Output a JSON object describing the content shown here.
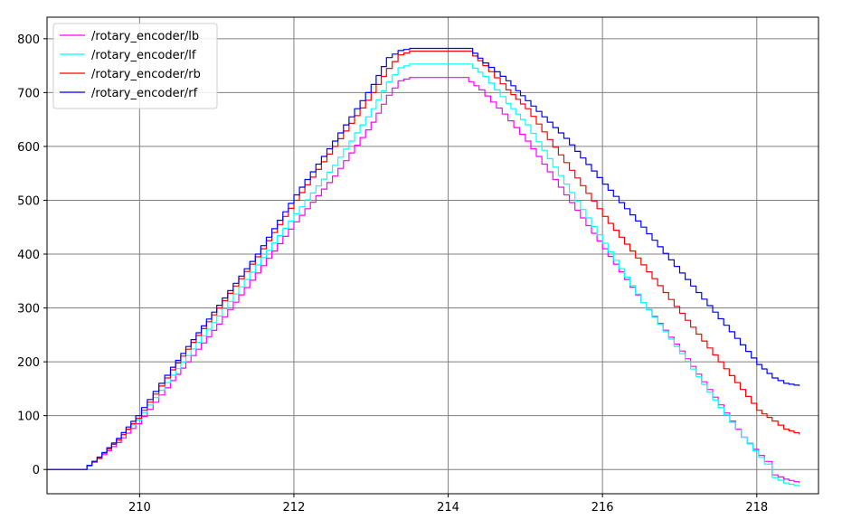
{
  "chart_data": {
    "type": "line",
    "title": "",
    "xlabel": "",
    "ylabel": "",
    "xlim": [
      208.8,
      218.8
    ],
    "ylim": [
      -45,
      840
    ],
    "grid": true,
    "legend_position": "top-left",
    "x_ticks": [
      210,
      212,
      214,
      216,
      218
    ],
    "y_ticks": [
      0,
      100,
      200,
      300,
      400,
      500,
      600,
      700,
      800
    ],
    "series": [
      {
        "name": "/rotary_encoder/lb",
        "color": "#ff00ff",
        "points": [
          [
            208.8,
            0
          ],
          [
            209.25,
            0
          ],
          [
            209.45,
            20
          ],
          [
            209.7,
            50
          ],
          [
            209.95,
            85
          ],
          [
            210.4,
            165
          ],
          [
            211.0,
            270
          ],
          [
            211.5,
            365
          ],
          [
            212.0,
            460
          ],
          [
            212.5,
            545
          ],
          [
            213.0,
            645
          ],
          [
            213.2,
            695
          ],
          [
            213.35,
            722
          ],
          [
            213.5,
            728
          ],
          [
            214.2,
            728
          ],
          [
            214.4,
            705
          ],
          [
            214.7,
            660
          ],
          [
            215.0,
            610
          ],
          [
            215.5,
            510
          ],
          [
            216.0,
            410
          ],
          [
            216.5,
            310
          ],
          [
            217.0,
            220
          ],
          [
            217.5,
            120
          ],
          [
            217.8,
            60
          ],
          [
            218.1,
            15
          ],
          [
            218.2,
            -10
          ],
          [
            218.35,
            -18
          ],
          [
            218.55,
            -25
          ]
        ]
      },
      {
        "name": "/rotary_encoder/lf",
        "color": "#00ffff",
        "points": [
          [
            208.8,
            0
          ],
          [
            209.25,
            0
          ],
          [
            209.45,
            22
          ],
          [
            209.7,
            55
          ],
          [
            209.95,
            92
          ],
          [
            210.4,
            175
          ],
          [
            211.0,
            285
          ],
          [
            211.5,
            380
          ],
          [
            212.0,
            475
          ],
          [
            212.5,
            565
          ],
          [
            213.0,
            670
          ],
          [
            213.2,
            720
          ],
          [
            213.35,
            746
          ],
          [
            213.5,
            753
          ],
          [
            214.25,
            753
          ],
          [
            214.45,
            730
          ],
          [
            214.75,
            680
          ],
          [
            215.0,
            640
          ],
          [
            215.5,
            530
          ],
          [
            216.0,
            420
          ],
          [
            216.5,
            310
          ],
          [
            217.0,
            215
          ],
          [
            217.5,
            115
          ],
          [
            217.8,
            60
          ],
          [
            218.1,
            10
          ],
          [
            218.2,
            -15
          ],
          [
            218.35,
            -25
          ],
          [
            218.55,
            -32
          ]
        ]
      },
      {
        "name": "/rotary_encoder/rb",
        "color": "#ff0000",
        "points": [
          [
            208.8,
            0
          ],
          [
            209.25,
            0
          ],
          [
            209.45,
            22
          ],
          [
            209.7,
            55
          ],
          [
            209.95,
            95
          ],
          [
            210.4,
            185
          ],
          [
            211.0,
            300
          ],
          [
            211.5,
            395
          ],
          [
            212.0,
            500
          ],
          [
            212.5,
            600
          ],
          [
            213.0,
            700
          ],
          [
            213.2,
            745
          ],
          [
            213.35,
            770
          ],
          [
            213.5,
            777
          ],
          [
            214.25,
            777
          ],
          [
            214.45,
            750
          ],
          [
            214.75,
            705
          ],
          [
            215.0,
            670
          ],
          [
            215.5,
            570
          ],
          [
            216.0,
            470
          ],
          [
            216.5,
            380
          ],
          [
            217.0,
            290
          ],
          [
            217.5,
            200
          ],
          [
            218.0,
            110
          ],
          [
            218.2,
            90
          ],
          [
            218.35,
            75
          ],
          [
            218.55,
            65
          ]
        ]
      },
      {
        "name": "/rotary_encoder/rf",
        "color": "#0000ff",
        "points": [
          [
            208.8,
            0
          ],
          [
            209.25,
            0
          ],
          [
            209.45,
            23
          ],
          [
            209.7,
            58
          ],
          [
            209.95,
            100
          ],
          [
            210.4,
            190
          ],
          [
            211.0,
            305
          ],
          [
            211.5,
            400
          ],
          [
            212.0,
            510
          ],
          [
            212.5,
            610
          ],
          [
            213.0,
            715
          ],
          [
            213.2,
            765
          ],
          [
            213.35,
            778
          ],
          [
            213.5,
            782
          ],
          [
            214.25,
            782
          ],
          [
            214.45,
            755
          ],
          [
            214.75,
            722
          ],
          [
            215.0,
            685
          ],
          [
            215.5,
            615
          ],
          [
            216.0,
            530
          ],
          [
            216.5,
            450
          ],
          [
            217.0,
            365
          ],
          [
            217.5,
            280
          ],
          [
            218.0,
            195
          ],
          [
            218.2,
            170
          ],
          [
            218.35,
            160
          ],
          [
            218.55,
            155
          ]
        ]
      }
    ]
  }
}
